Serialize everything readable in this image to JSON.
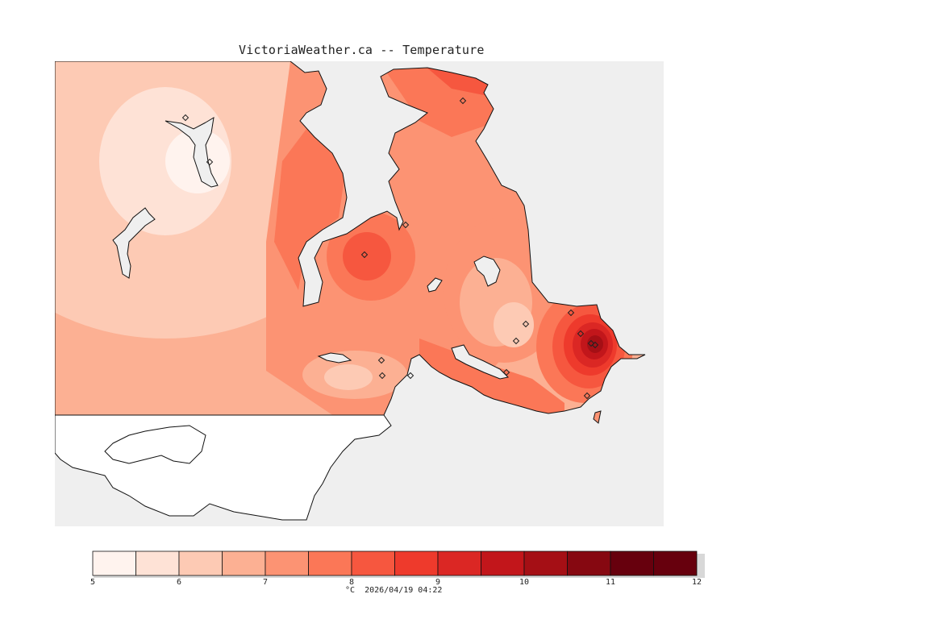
{
  "title": "VictoriaWeather.ca -- Temperature",
  "legend": {
    "units_and_time": "°C  2026/04/19 04:22",
    "ticks": [
      "5",
      "6",
      "7",
      "8",
      "9",
      "10",
      "11",
      "12"
    ],
    "min": 5,
    "max": 12,
    "step": 0.5,
    "colors": [
      "#fff3ee",
      "#fee2d6",
      "#fdcab4",
      "#fcb093",
      "#fc9373",
      "#fb7757",
      "#f6573f",
      "#ee3a2c",
      "#db2724",
      "#c2161b",
      "#a50f15",
      "#860811",
      "#67000d"
    ]
  },
  "map": {
    "water_color": "#efefef",
    "land_outside_color": "#ffffff",
    "stations": [
      {
        "name": "station",
        "temp": 6.0
      },
      {
        "name": "station",
        "temp": 5.5
      },
      {
        "name": "station",
        "temp": 8.5
      },
      {
        "name": "station",
        "temp": 8.0
      },
      {
        "name": "station",
        "temp": 8.5
      },
      {
        "name": "station",
        "temp": 6.5
      },
      {
        "name": "station",
        "temp": 6.5
      },
      {
        "name": "station",
        "temp": 11.0
      },
      {
        "name": "station",
        "temp": 11.5
      },
      {
        "name": "station",
        "temp": 11.0
      },
      {
        "name": "station",
        "temp": 7.0
      },
      {
        "name": "station",
        "temp": 7.0
      },
      {
        "name": "station",
        "temp": 8.0
      },
      {
        "name": "station",
        "temp": 7.5
      },
      {
        "name": "station",
        "temp": 9.0
      },
      {
        "name": "station",
        "temp": 8.5
      }
    ]
  }
}
